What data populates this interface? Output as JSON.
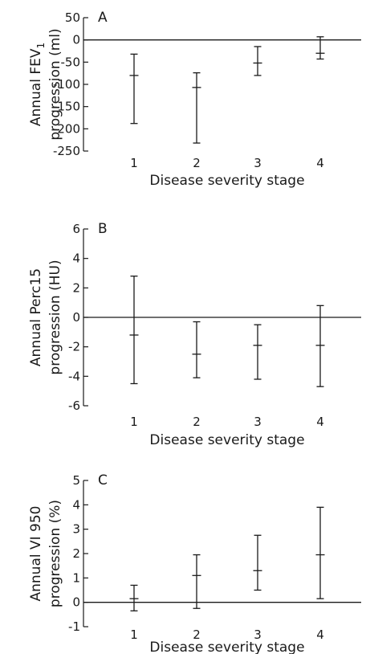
{
  "chart_data": [
    {
      "type": "errorbar",
      "panel": "A",
      "xlabel": "Disease severity stage",
      "ylabel": "Annual FEV",
      "ylabel_subscript": "1",
      "ylabel_line2": "progression (ml)",
      "categories": [
        "1",
        "2",
        "3",
        "4"
      ],
      "center": [
        -80,
        -107,
        -52,
        -30
      ],
      "lower": [
        -188,
        -232,
        -80,
        -43
      ],
      "upper": [
        -32,
        -74,
        -15,
        7
      ],
      "ylim": [
        -250,
        50
      ],
      "yticks": [
        50,
        0,
        -50,
        -100,
        -150,
        -200,
        -250
      ],
      "ytick_labels": [
        "50",
        "0",
        "-50",
        "-100",
        "-150",
        "-200",
        "-250"
      ],
      "reference_line": 0
    },
    {
      "type": "errorbar",
      "panel": "B",
      "xlabel": "Disease severity stage",
      "ylabel": "Annual Perc15",
      "ylabel_line2": "progression (HU)",
      "categories": [
        "1",
        "2",
        "3",
        "4"
      ],
      "center": [
        -1.2,
        -2.5,
        -1.9,
        -1.9
      ],
      "lower": [
        -4.5,
        -4.1,
        -4.2,
        -4.7
      ],
      "upper": [
        2.8,
        -0.3,
        -0.5,
        0.8
      ],
      "ylim": [
        -6,
        6
      ],
      "yticks": [
        6,
        4,
        2,
        0,
        -2,
        -4,
        -6
      ],
      "ytick_labels": [
        "6",
        "4",
        "2",
        "0",
        "-2",
        "-4",
        "-6"
      ],
      "reference_line": 0
    },
    {
      "type": "errorbar",
      "panel": "C",
      "xlabel": "Disease severity stage",
      "ylabel": "Annual VI 950",
      "ylabel_line2": "progression (%)",
      "categories": [
        "1",
        "2",
        "3",
        "4"
      ],
      "center": [
        0.15,
        1.1,
        1.3,
        1.95
      ],
      "lower": [
        -0.35,
        -0.25,
        0.5,
        0.15
      ],
      "upper": [
        0.7,
        1.95,
        2.75,
        3.9
      ],
      "ylim": [
        -1,
        5
      ],
      "yticks": [
        5,
        4,
        3,
        2,
        1,
        0,
        -1
      ],
      "ytick_labels": [
        "5",
        "4",
        "3",
        "2",
        "1",
        "0",
        "-1"
      ],
      "reference_line": 0
    }
  ]
}
